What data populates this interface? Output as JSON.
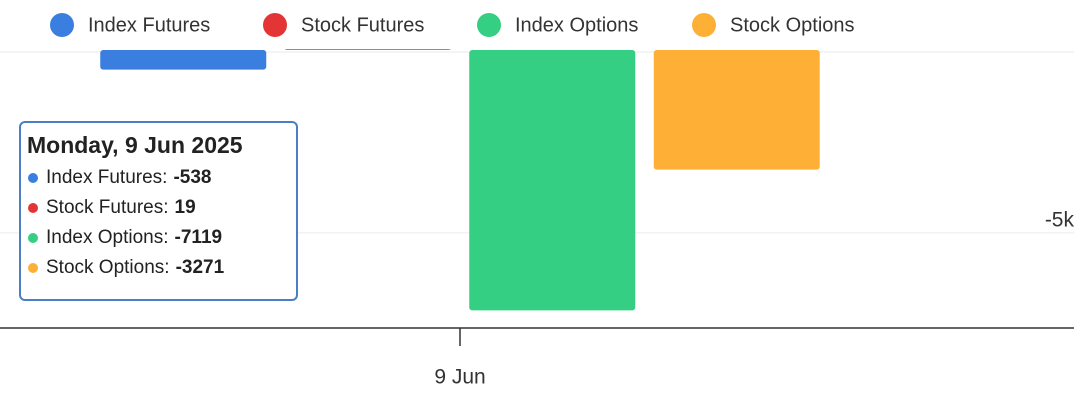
{
  "chart_data": {
    "type": "bar",
    "categories": [
      "9 Jun"
    ],
    "series": [
      {
        "name": "Index Futures",
        "color": "#3a7fe0",
        "values": [
          -538
        ]
      },
      {
        "name": "Stock Futures",
        "color": "#e33535",
        "values": [
          19
        ]
      },
      {
        "name": "Index Options",
        "color": "#34cf82",
        "values": [
          -7119
        ]
      },
      {
        "name": "Stock Options",
        "color": "#fdb035",
        "values": [
          -3271
        ]
      }
    ],
    "ylim": [
      -7600,
      0
    ],
    "yticks": [
      {
        "value": -5000,
        "label": "-5k"
      }
    ],
    "grid": true,
    "legend": "top",
    "tooltip": {
      "title": "Monday, 9 Jun 2025",
      "rows": [
        {
          "label": "Index Futures:",
          "value": -538
        },
        {
          "label": "Stock Futures:",
          "value": 19
        },
        {
          "label": "Index Options:",
          "value": -7119
        },
        {
          "label": "Stock Options:",
          "value": -3271
        }
      ]
    }
  }
}
